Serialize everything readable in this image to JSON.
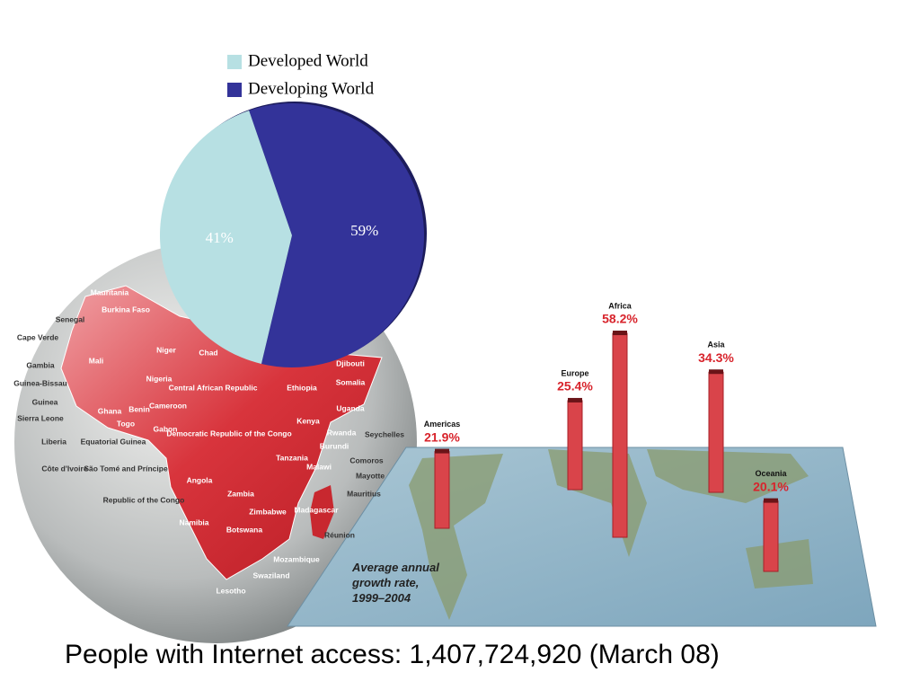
{
  "chart_data": [
    {
      "type": "pie",
      "categories": [
        "Developed World",
        "Developing World"
      ],
      "values": [
        41,
        59
      ],
      "value_labels": [
        "41%",
        "59%"
      ],
      "colors": [
        "#b7e0e3",
        "#333399"
      ],
      "legend": "top"
    },
    {
      "type": "bar",
      "title": "Average annual growth rate, 1999–2004",
      "categories": [
        "Americas",
        "Europe",
        "Africa",
        "Asia",
        "Oceania"
      ],
      "values": [
        21.9,
        25.4,
        58.2,
        34.3,
        20.1
      ],
      "value_labels": [
        "21.9%",
        "25.4%",
        "58.2%",
        "34.3%",
        "20.1%"
      ],
      "color": "#d9444a"
    }
  ],
  "globe_labels": [
    "Mauritania",
    "Burkina Faso",
    "Senegal",
    "Cape Verde",
    "Gambia",
    "Guinea-Bissau",
    "Guinea",
    "Sierra Leone",
    "Liberia",
    "Côte d'Ivoire",
    "Mali",
    "Niger",
    "Chad",
    "Nigeria",
    "Ghana",
    "Benin",
    "Togo",
    "Equatorial Guinea",
    "Cameroon",
    "Gabon",
    "São Tomé and Príncipe",
    "Republic of the Congo",
    "Central African Republic",
    "Democratic Republic of the Congo",
    "Ethiopia",
    "Djibouti",
    "Somalia",
    "Uganda",
    "Kenya",
    "Rwanda",
    "Burundi",
    "Seychelles",
    "Tanzania",
    "Malawi",
    "Comoros",
    "Mayotte",
    "Angola",
    "Zambia",
    "Mauritius",
    "Madagascar",
    "Zimbabwe",
    "Namibia",
    "Botswana",
    "Réunion",
    "Mozambique",
    "Swaziland",
    "Lesotho"
  ],
  "footer": "People with Internet access: 1,407,724,920 (March 08)"
}
